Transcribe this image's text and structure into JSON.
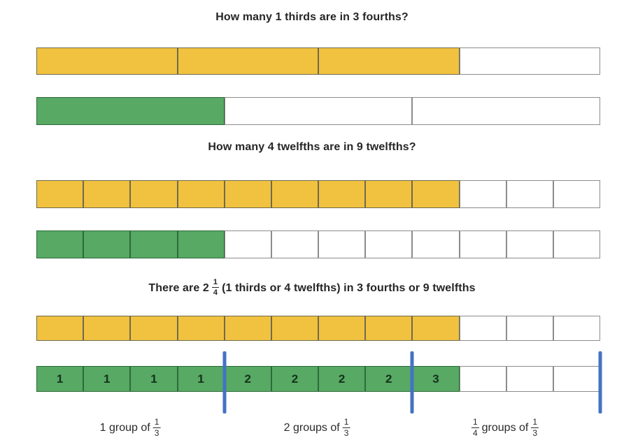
{
  "colors": {
    "yellow": "#F1C23F",
    "green": "#57A964",
    "blue": "#4472C4"
  },
  "titles": {
    "q1": "How many 1 thirds are in 3 fourths?",
    "q2": "How many 4 twelfths are in 9 twelfths?",
    "result_prefix": "There are 2",
    "result_frac_num": "1",
    "result_frac_den": "4",
    "result_suffix": "(1 thirds or 4 twelfths) in 3 fourths or 9 twelfths"
  },
  "bars": [
    {
      "name": "three-fourths-bar",
      "segments": 4,
      "filled": 3,
      "fill": "yellow"
    },
    {
      "name": "one-third-bar",
      "segments": 3,
      "filled": 1,
      "fill": "green"
    },
    {
      "name": "nine-twelfths-bar",
      "segments": 12,
      "filled": 9,
      "fill": "yellow"
    },
    {
      "name": "four-twelfths-bar",
      "segments": 12,
      "filled": 4,
      "fill": "green"
    },
    {
      "name": "result-nine-twelfths-bar",
      "segments": 12,
      "filled": 9,
      "fill": "yellow"
    },
    {
      "name": "result-groups-bar",
      "segments": 12,
      "filled": 9,
      "fill": "green",
      "cell_labels": [
        "1",
        "1",
        "1",
        "1",
        "2",
        "2",
        "2",
        "2",
        "3",
        "",
        "",
        ""
      ]
    }
  ],
  "markers": {
    "positions_twelfths": [
      4,
      8,
      12
    ]
  },
  "group_labels": [
    {
      "text": "1 group of",
      "frac_num": "1",
      "frac_den": "3"
    },
    {
      "text": "2 groups of",
      "frac_num": "1",
      "frac_den": "3"
    },
    {
      "lead_num": "1",
      "lead_den": "4",
      "text": "groups of",
      "frac_num": "1",
      "frac_den": "3"
    }
  ]
}
